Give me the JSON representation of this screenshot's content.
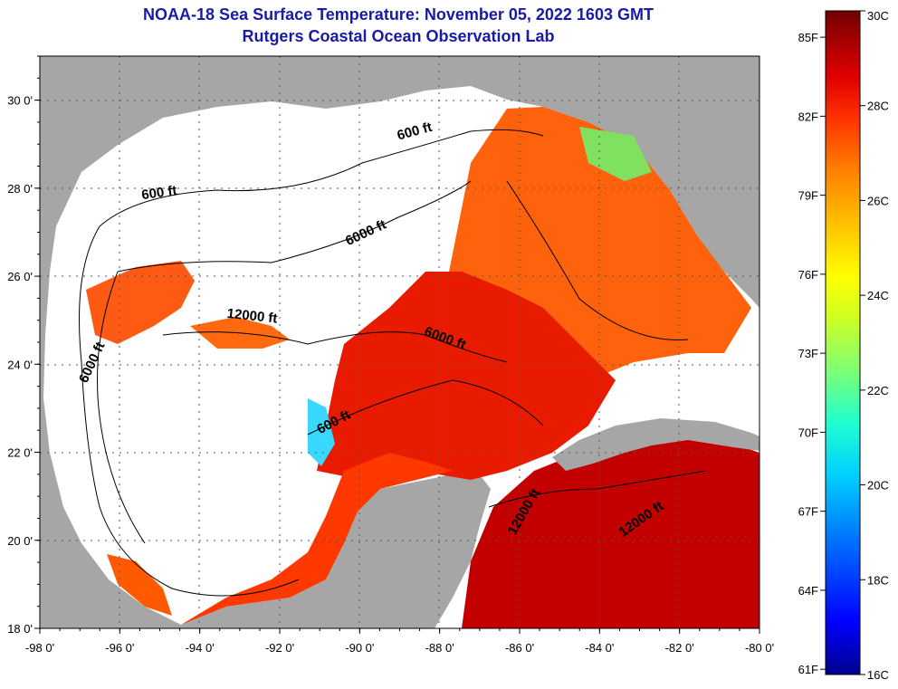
{
  "header": {
    "title": "NOAA-18 Sea Surface Temperature:  November 05, 2022 1603 GMT",
    "subtitle": "Rutgers Coastal Ocean Observation Lab"
  },
  "map": {
    "region": "Gulf of Mexico",
    "lon_range": [
      -98,
      -80
    ],
    "lat_range": [
      18,
      31
    ],
    "x_tick_labels": [
      "-98 0'",
      "-96 0'",
      "-94 0'",
      "-92 0'",
      "-90 0'",
      "-88 0'",
      "-86 0'",
      "-84 0'",
      "-82 0'",
      "-80 0'"
    ],
    "y_tick_labels": [
      "30 0'",
      "28 0'",
      "26 0'",
      "24 0'",
      "22 0'",
      "20 0'",
      "18 0'"
    ],
    "grid": "dotted",
    "land_color": "#a6a6a6",
    "cloud_color": "#ffffff",
    "contour_labels": [
      {
        "text": "600 ft",
        "lon": -88.6,
        "lat": 29.2,
        "angle": -15
      },
      {
        "text": "600 ft",
        "lon": -95.0,
        "lat": 27.8,
        "angle": -8
      },
      {
        "text": "6000 ft",
        "lon": -89.8,
        "lat": 26.9,
        "angle": -25
      },
      {
        "text": "12000 ft",
        "lon": -92.7,
        "lat": 25.0,
        "angle": 6
      },
      {
        "text": "6000 ft",
        "lon": -96.6,
        "lat": 24.0,
        "angle": -65
      },
      {
        "text": "6000 ft",
        "lon": -87.9,
        "lat": 24.5,
        "angle": 20
      },
      {
        "text": "600 ft",
        "lon": -90.6,
        "lat": 22.6,
        "angle": -28
      },
      {
        "text": "12000 ft",
        "lon": -85.8,
        "lat": 20.6,
        "angle": -60
      },
      {
        "text": "12000 ft",
        "lon": -82.9,
        "lat": 20.4,
        "angle": -35
      }
    ]
  },
  "color_scale": {
    "fahrenheit_labels": [
      "85F",
      "82F",
      "79F",
      "76F",
      "73F",
      "70F",
      "67F",
      "64F",
      "61F"
    ],
    "celsius_labels": [
      "30C",
      "28C",
      "26C",
      "24C",
      "22C",
      "20C",
      "18C",
      "16C"
    ],
    "celsius_range": [
      16,
      30
    ],
    "colors": [
      "#00008f",
      "#0000ff",
      "#0070ff",
      "#00d0ff",
      "#20ffd0",
      "#80ff70",
      "#d0ff20",
      "#ffff00",
      "#ffc000",
      "#ff8000",
      "#ff3000",
      "#e00000",
      "#a00000",
      "#700000"
    ]
  }
}
